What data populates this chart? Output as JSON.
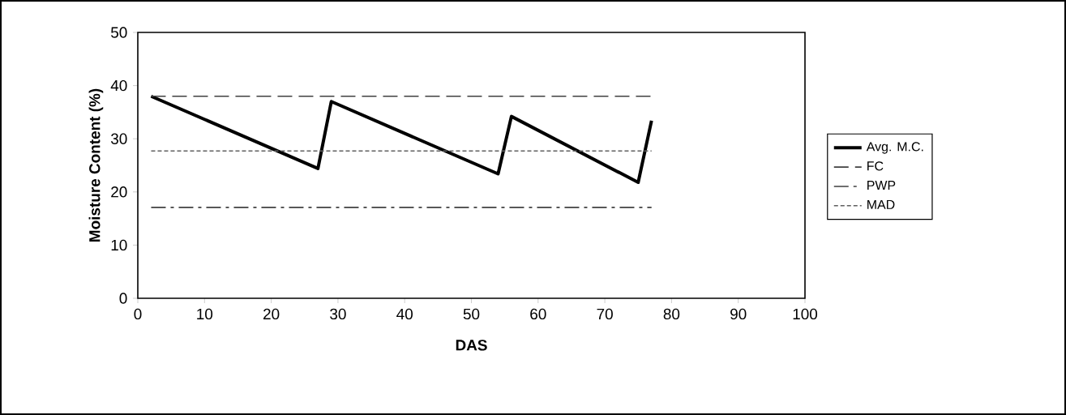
{
  "chart_data": {
    "type": "line",
    "xlabel": "DAS",
    "ylabel": "Moisture Content (%)",
    "xlim": [
      0,
      100
    ],
    "ylim": [
      0,
      50
    ],
    "xticks": [
      0,
      10,
      20,
      30,
      40,
      50,
      60,
      70,
      80,
      90,
      100
    ],
    "yticks": [
      0,
      10,
      20,
      30,
      40,
      50
    ],
    "grid": false,
    "legend": "right",
    "marker": "none",
    "series": [
      {
        "name": "Avg. M.C.",
        "color": "#000000",
        "line_style": "solid",
        "x": [
          2,
          27,
          29,
          54,
          56,
          75,
          77
        ],
        "values": [
          38,
          24.4,
          37,
          23.4,
          34.2,
          21.8,
          33.4
        ]
      },
      {
        "name": "FC",
        "color": "#404040",
        "line_style": "dashed",
        "x": [
          2,
          77
        ],
        "values": [
          38,
          38
        ]
      },
      {
        "name": "PWP",
        "color": "#404040",
        "line_style": "dashdot",
        "x": [
          2,
          77
        ],
        "values": [
          17.1,
          17.1
        ]
      },
      {
        "name": "MAD",
        "color": "#606060",
        "line_style": "dotted",
        "x": [
          2,
          77
        ],
        "values": [
          27.7,
          27.7
        ]
      }
    ]
  }
}
